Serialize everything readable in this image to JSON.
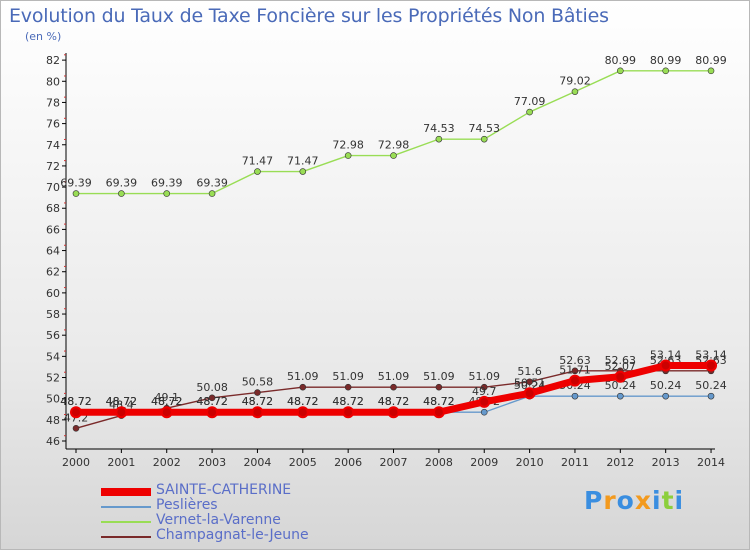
{
  "header": {
    "title": "Evolution du Taux de Taxe Foncière sur les Propriétés Non Bâties",
    "unit": "(en %)"
  },
  "chart_data": {
    "type": "line",
    "title": "Evolution du Taux de Taxe Foncière sur les Propriétés Non Bâties",
    "ylabel": "(en %)",
    "xlabel": "",
    "x": [
      "2000",
      "2001",
      "2002",
      "2003",
      "2004",
      "2005",
      "2006",
      "2007",
      "2008",
      "2009",
      "2010",
      "2011",
      "2012",
      "2013",
      "2014"
    ],
    "ylim": [
      46,
      82
    ],
    "yticks": [
      "46",
      "48",
      "50",
      "52",
      "54",
      "56",
      "58",
      "60",
      "62",
      "64",
      "66",
      "68",
      "70",
      "72",
      "74",
      "76",
      "78",
      "80",
      "82"
    ],
    "grid": false,
    "legend_position": "bottom-left",
    "series": [
      {
        "name": "Vernet-la-Varenne",
        "color": "#99dd55",
        "values": [
          69.39,
          69.39,
          69.39,
          69.39,
          71.47,
          71.47,
          72.98,
          72.98,
          74.53,
          74.53,
          77.09,
          79.02,
          80.99,
          80.99,
          80.99
        ],
        "labels": [
          "69.39",
          "69.39",
          "69.39",
          "69.39",
          "71.47",
          "71.47",
          "72.98",
          "72.98",
          "74.53",
          "74.53",
          "77.09",
          "79.02",
          "80.99",
          "80.99",
          "80.99"
        ]
      },
      {
        "name": "Champagnat-le-Jeune",
        "color": "#7a2a2a",
        "values": [
          47.2,
          48.4,
          49.1,
          50.08,
          50.58,
          51.09,
          51.09,
          51.09,
          51.09,
          51.09,
          51.6,
          52.63,
          52.63,
          52.63,
          52.63
        ],
        "labels": [
          "47.2",
          "48.4",
          "49.1",
          "50.08",
          "50.58",
          "51.09",
          "51.09",
          "51.09",
          "51.09",
          "51.09",
          "51.6",
          "52.63",
          "52.63",
          "52.63",
          "52.63"
        ]
      },
      {
        "name": "Peslières",
        "color": "#6699cc",
        "values": [
          48.72,
          48.72,
          48.72,
          48.72,
          48.72,
          48.72,
          48.72,
          48.72,
          48.72,
          48.72,
          50.24,
          50.24,
          50.24,
          50.24,
          50.24
        ],
        "labels": [
          "48.72",
          "48.72",
          "48.72",
          "48.72",
          "48.72",
          "48.72",
          "48.72",
          "48.72",
          "48.72",
          "48.72",
          "50.24",
          "50.24",
          "50.24",
          "50.24",
          "50.24"
        ]
      },
      {
        "name": "SAINTE-CATHERINE",
        "color": "#ee0000",
        "values": [
          48.72,
          48.72,
          48.72,
          48.72,
          48.72,
          48.72,
          48.72,
          48.72,
          48.72,
          49.7,
          50.51,
          51.71,
          52.07,
          53.14,
          53.14
        ],
        "labels": [
          "48.72",
          "48.72",
          "48.72",
          "48.72",
          "48.72",
          "48.72",
          "48.72",
          "48.72",
          "48.72",
          "49.7",
          "50.51",
          "51.71",
          "52.07",
          "53.14",
          "53.14"
        ]
      }
    ]
  },
  "legend": {
    "items": [
      {
        "label": "SAINTE-CATHERINE",
        "color": "#ee0000"
      },
      {
        "label": "Peslières",
        "color": "#6699cc"
      },
      {
        "label": "Vernet-la-Varenne",
        "color": "#99dd55"
      },
      {
        "label": "Champagnat-le-Jeune",
        "color": "#7a2a2a"
      }
    ]
  },
  "logo": {
    "text": "Proxiti",
    "letters": [
      {
        "ch": "P",
        "color": "#3a8ee0"
      },
      {
        "ch": "r",
        "color": "#f39a1e"
      },
      {
        "ch": "o",
        "color": "#3a8ee0"
      },
      {
        "ch": "x",
        "color": "#f39a1e"
      },
      {
        "ch": "i",
        "color": "#3a8ee0"
      },
      {
        "ch": "t",
        "color": "#8ccf3c"
      },
      {
        "ch": "i",
        "color": "#3a8ee0"
      }
    ]
  }
}
